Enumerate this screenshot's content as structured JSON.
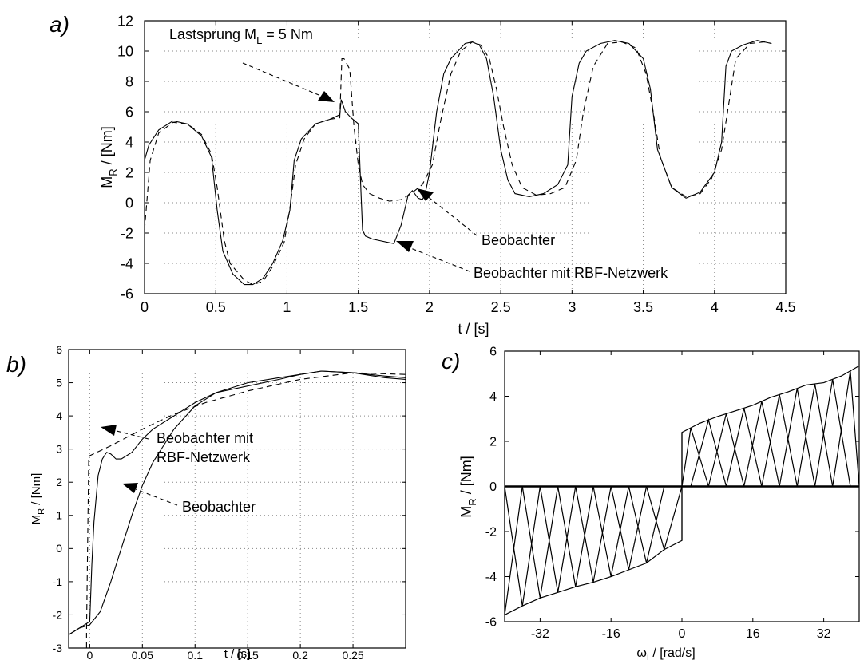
{
  "panels": {
    "a": {
      "letter": "a)",
      "annotations": {
        "lastsprung_prefix": "Lastsprung  M",
        "lastsprung_sub": "L",
        "lastsprung_suffix": " = 5 Nm",
        "beobachter": "Beobachter",
        "beobachter_rbf": "Beobachter mit RBF-Netzwerk"
      }
    },
    "b": {
      "letter": "b)",
      "annotations": {
        "beobachter_rbf_line1": "Beobachter mit",
        "beobachter_rbf_line2": "RBF-Netzwerk",
        "beobachter": "Beobachter"
      }
    },
    "c": {
      "letter": "c)"
    }
  },
  "chart_data": [
    {
      "id": "a",
      "type": "line",
      "title": "",
      "xlabel": "t / [s]",
      "ylabel_main": "M",
      "ylabel_sub": "R",
      "ylabel_rest": " / [Nm]",
      "xlim": [
        0,
        4.5
      ],
      "ylim": [
        -6,
        12
      ],
      "xticks": [
        0,
        0.5,
        1,
        1.5,
        2,
        2.5,
        3,
        3.5,
        4,
        4.5
      ],
      "xtick_labels": [
        "0",
        "0.5",
        "1",
        "1.5",
        "2",
        "2.5",
        "3",
        "3.5",
        "4",
        "4.5"
      ],
      "yticks": [
        -6,
        -4,
        -2,
        0,
        2,
        4,
        6,
        8,
        10,
        12
      ],
      "ytick_labels": [
        "-6",
        "-4",
        "-2",
        "0",
        "2",
        "4",
        "6",
        "8",
        "10",
        "12"
      ],
      "grid": true,
      "series": [
        {
          "style": "solid",
          "x": [
            0,
            0.03,
            0.1,
            0.2,
            0.3,
            0.4,
            0.47,
            0.51,
            0.55,
            0.62,
            0.7,
            0.76,
            0.83,
            0.9,
            0.97,
            1.02,
            1.05,
            1.1,
            1.2,
            1.3,
            1.37,
            1.38,
            1.41,
            1.45,
            1.5,
            1.52,
            1.53,
            1.55,
            1.6,
            1.65,
            1.7,
            1.75,
            1.8,
            1.85,
            1.88,
            1.92,
            1.95,
            1.97,
            2.0,
            2.05,
            2.1,
            2.15,
            2.2,
            2.25,
            2.3,
            2.35,
            2.4,
            2.45,
            2.5,
            2.55,
            2.6,
            2.7,
            2.8,
            2.9,
            2.97,
            3.0,
            3.05,
            3.1,
            3.2,
            3.3,
            3.4,
            3.5,
            3.55,
            3.6,
            3.7,
            3.8,
            3.9,
            4.0,
            4.05,
            4.08,
            4.12,
            4.2,
            4.3,
            4.4
          ],
          "y": [
            2.8,
            3.8,
            4.8,
            5.4,
            5.2,
            4.4,
            3.0,
            -0.5,
            -3.2,
            -4.7,
            -5.4,
            -5.4,
            -5.0,
            -4.0,
            -2.5,
            -0.5,
            2.8,
            4.2,
            5.2,
            5.5,
            5.8,
            6.8,
            6.0,
            5.6,
            5.2,
            0.5,
            -1.8,
            -2.2,
            -2.4,
            -2.5,
            -2.6,
            -2.7,
            -1.5,
            0.5,
            0.8,
            0.3,
            0.2,
            0.6,
            2.0,
            6.0,
            8.5,
            9.5,
            10.0,
            10.5,
            10.6,
            10.4,
            9.5,
            7.0,
            3.5,
            1.5,
            0.6,
            0.4,
            0.6,
            1.2,
            2.5,
            7.0,
            9.2,
            10.0,
            10.5,
            10.7,
            10.5,
            9.5,
            7.5,
            3.5,
            1.0,
            0.3,
            0.7,
            2.0,
            4.0,
            9.0,
            10.0,
            10.4,
            10.7,
            10.5
          ]
        },
        {
          "style": "dashed",
          "x": [
            0,
            0.04,
            0.1,
            0.2,
            0.3,
            0.4,
            0.47,
            0.51,
            0.56,
            0.6,
            0.7,
            0.76,
            0.83,
            0.9,
            0.98,
            1.02,
            1.06,
            1.12,
            1.2,
            1.3,
            1.37,
            1.385,
            1.4,
            1.44,
            1.47,
            1.5,
            1.53,
            1.58,
            1.65,
            1.72,
            1.8,
            1.87,
            1.95,
            2.02,
            2.08,
            2.15,
            2.22,
            2.3,
            2.36,
            2.42,
            2.47,
            2.52,
            2.58,
            2.65,
            2.75,
            2.85,
            2.95,
            3.03,
            3.08,
            3.15,
            3.25,
            3.35,
            3.45,
            3.52,
            3.57,
            3.62,
            3.7,
            3.8,
            3.9,
            3.98,
            4.05,
            4.1,
            4.15,
            4.25,
            4.35,
            4.4
          ],
          "y": [
            -1.8,
            2.8,
            4.6,
            5.3,
            5.2,
            4.5,
            3.2,
            1.0,
            -2.5,
            -4.0,
            -5.1,
            -5.4,
            -5.2,
            -4.2,
            -2.6,
            -0.4,
            2.5,
            4.2,
            5.2,
            5.5,
            5.6,
            9.5,
            9.5,
            8.8,
            5.0,
            2.5,
            1.2,
            0.6,
            0.3,
            0.1,
            0.2,
            0.6,
            1.2,
            2.5,
            5.5,
            8.5,
            10.0,
            10.6,
            10.4,
            9.5,
            7.5,
            5.0,
            2.5,
            1.0,
            0.5,
            0.6,
            1.0,
            2.8,
            6.0,
            9.0,
            10.5,
            10.6,
            10.2,
            8.5,
            6.0,
            3.0,
            1.0,
            0.4,
            0.6,
            1.6,
            3.5,
            6.5,
            9.5,
            10.5,
            10.6,
            10.5
          ]
        }
      ]
    },
    {
      "id": "b",
      "type": "line",
      "title": "",
      "xlabel": "t / [s]",
      "ylabel_main": "M",
      "ylabel_sub": "R",
      "ylabel_rest": " / [Nm]",
      "xlim": [
        -0.02,
        0.3
      ],
      "ylim": [
        -3,
        6
      ],
      "xticks": [
        0,
        0.05,
        0.1,
        0.15,
        0.2,
        0.25
      ],
      "xtick_labels": [
        "0",
        "0.05",
        "0.1",
        "0.15",
        "0.2",
        "0.25"
      ],
      "yticks": [
        -3,
        -2,
        -1,
        0,
        1,
        2,
        3,
        4,
        5,
        6
      ],
      "ytick_labels": [
        "-3",
        "-2",
        "-1",
        "0",
        "1",
        "2",
        "3",
        "4",
        "5",
        "6"
      ],
      "grid": true,
      "series": [
        {
          "style": "solid",
          "x": [
            -0.02,
            -0.01,
            0,
            0.002,
            0.004,
            0.008,
            0.012,
            0.016,
            0.02,
            0.025,
            0.03,
            0.035,
            0.04,
            0.05,
            0.06,
            0.08,
            0.1,
            0.12,
            0.15,
            0.18,
            0.2,
            0.22,
            0.25,
            0.28,
            0.3
          ],
          "y": [
            -2.6,
            -2.4,
            -2.2,
            -0.5,
            0.8,
            2.2,
            2.7,
            2.9,
            2.85,
            2.7,
            2.7,
            2.8,
            2.9,
            3.3,
            3.6,
            4.0,
            4.4,
            4.7,
            4.9,
            5.1,
            5.25,
            5.35,
            5.3,
            5.2,
            5.15
          ]
        },
        {
          "style": "solid",
          "x": [
            -0.02,
            -0.01,
            0,
            0.01,
            0.02,
            0.03,
            0.04,
            0.05,
            0.06,
            0.07,
            0.08,
            0.1,
            0.12,
            0.15,
            0.18,
            0.2,
            0.22,
            0.25,
            0.28,
            0.3
          ],
          "y": [
            -2.6,
            -2.4,
            -2.3,
            -1.9,
            -1.0,
            0.0,
            1.0,
            1.9,
            2.6,
            3.1,
            3.6,
            4.3,
            4.7,
            5.0,
            5.15,
            5.25,
            5.35,
            5.3,
            5.15,
            5.1
          ]
        },
        {
          "style": "dashed",
          "x": [
            -0.003,
            -0.003,
            -0.001,
            0,
            0.02,
            0.05,
            0.08,
            0.11,
            0.15,
            0.2,
            0.25,
            0.3
          ],
          "y": [
            -3.0,
            -2.5,
            2.7,
            2.8,
            3.1,
            3.6,
            4.05,
            4.4,
            4.75,
            5.1,
            5.3,
            5.25
          ]
        }
      ]
    },
    {
      "id": "c",
      "type": "line",
      "title": "",
      "xlabel_main": "ω",
      "xlabel_sub": "I",
      "xlabel_rest": " / [rad/s]",
      "ylabel_main": "M",
      "ylabel_sub": "R",
      "ylabel_rest": " / [Nm]",
      "xlim": [
        -40,
        40
      ],
      "ylim": [
        -6,
        6
      ],
      "xticks": [
        -32,
        -16,
        0,
        16,
        32
      ],
      "xtick_labels": [
        "-32",
        "-16",
        "0",
        "16",
        "32"
      ],
      "yticks": [
        -6,
        -4,
        -2,
        0,
        2,
        4,
        6
      ],
      "ytick_labels": [
        "-6",
        "-4",
        "-2",
        "0",
        "2",
        "4",
        "6"
      ],
      "grid": false,
      "envelope_x": [
        -40,
        -36,
        -32,
        -28,
        -24,
        -20,
        -16,
        -12,
        -8,
        -4,
        0,
        0,
        4,
        8,
        12,
        16,
        20,
        24,
        28,
        32,
        36,
        40
      ],
      "envelope_y": [
        -5.7,
        -5.3,
        -4.95,
        -4.7,
        -4.45,
        -4.25,
        -4.0,
        -3.7,
        -3.4,
        -2.8,
        -2.4,
        2.4,
        2.8,
        3.1,
        3.35,
        3.6,
        3.95,
        4.2,
        4.5,
        4.6,
        4.9,
        5.35
      ]
    }
  ]
}
